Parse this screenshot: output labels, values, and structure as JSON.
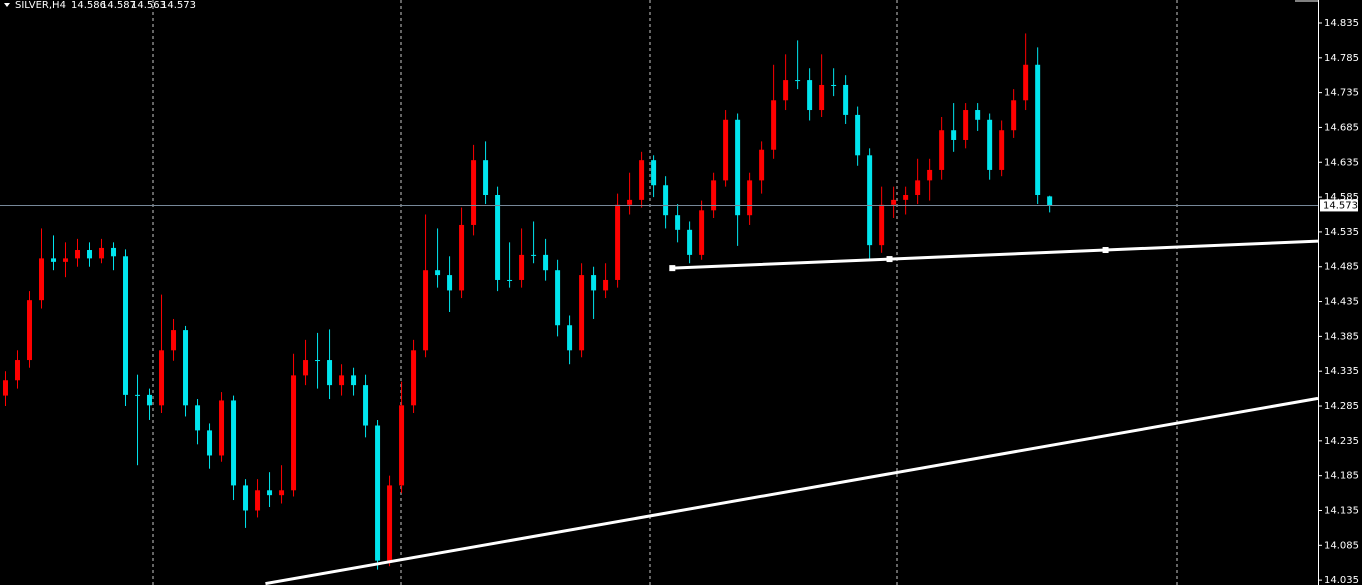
{
  "chart_data": {
    "type": "candlestick",
    "title": "SILVER,H4",
    "up_color": "#ff0000",
    "down_color": "#00e5ee",
    "ylim": [
      14.028,
      14.868
    ],
    "xlim": [
      0,
      109.4
    ],
    "yticks": [
      14.835,
      14.785,
      14.735,
      14.685,
      14.635,
      14.585,
      14.535,
      14.485,
      14.435,
      14.385,
      14.335,
      14.285,
      14.235,
      14.185,
      14.135,
      14.085,
      14.035
    ],
    "open": [
      14.3,
      14.322,
      14.351,
      14.437,
      14.497,
      14.492,
      14.497,
      14.509,
      14.497,
      14.512,
      14.5,
      14.301,
      14.301,
      14.286,
      14.365,
      14.394,
      14.286,
      14.25,
      14.214,
      14.293,
      14.171,
      14.135,
      14.164,
      14.157,
      14.164,
      14.329,
      14.351,
      14.351,
      14.315,
      14.329,
      14.315,
      14.257,
      14.063,
      14.171,
      14.286,
      14.365,
      14.48,
      14.473,
      14.451,
      14.545,
      14.638,
      14.588,
      14.466,
      14.466,
      14.502,
      14.502,
      14.48,
      14.401,
      14.365,
      14.473,
      14.451,
      14.466,
      14.574,
      14.581,
      14.638,
      14.602,
      14.559,
      14.538,
      14.502,
      14.566,
      14.609,
      14.696,
      14.559,
      14.609,
      14.653,
      14.724,
      14.753,
      14.753,
      14.71,
      14.746,
      14.746,
      14.703,
      14.645,
      14.516,
      14.574,
      14.581,
      14.588,
      14.609,
      14.624,
      14.681,
      14.667,
      14.71,
      14.696,
      14.624,
      14.681,
      14.724,
      14.775,
      14.586
    ],
    "high": [
      14.335,
      14.365,
      14.45,
      14.54,
      14.53,
      14.52,
      14.525,
      14.52,
      14.525,
      14.52,
      14.51,
      14.33,
      14.31,
      14.445,
      14.41,
      14.4,
      14.295,
      14.26,
      14.305,
      14.3,
      14.18,
      14.18,
      14.19,
      14.2,
      14.36,
      14.38,
      14.39,
      14.395,
      14.345,
      14.34,
      14.33,
      14.265,
      14.185,
      14.32,
      14.38,
      14.56,
      14.54,
      14.5,
      14.57,
      14.66,
      14.665,
      14.6,
      14.52,
      14.54,
      14.55,
      14.525,
      14.495,
      14.415,
      14.49,
      14.485,
      14.49,
      14.59,
      14.62,
      14.65,
      14.645,
      14.615,
      14.575,
      14.55,
      14.58,
      14.62,
      14.71,
      14.705,
      14.62,
      14.665,
      14.775,
      14.79,
      14.81,
      14.77,
      14.79,
      14.77,
      14.76,
      14.715,
      14.655,
      14.6,
      14.6,
      14.6,
      14.64,
      14.64,
      14.7,
      14.72,
      14.72,
      14.72,
      14.705,
      14.695,
      14.74,
      14.82,
      14.8,
      14.587
    ],
    "low": [
      14.285,
      14.31,
      14.34,
      14.425,
      14.48,
      14.47,
      14.485,
      14.485,
      14.49,
      14.48,
      14.285,
      14.2,
      14.265,
      14.275,
      14.35,
      14.27,
      14.23,
      14.195,
      14.205,
      14.15,
      14.11,
      14.125,
      14.14,
      14.145,
      14.155,
      14.315,
      14.31,
      14.295,
      14.3,
      14.3,
      14.24,
      14.05,
      14.055,
      14.16,
      14.275,
      14.355,
      14.455,
      14.42,
      14.44,
      14.53,
      14.575,
      14.45,
      14.455,
      14.455,
      14.49,
      14.465,
      14.385,
      14.345,
      14.355,
      14.41,
      14.44,
      14.455,
      14.56,
      14.57,
      14.585,
      14.54,
      14.52,
      14.49,
      14.495,
      14.555,
      14.6,
      14.515,
      14.545,
      14.59,
      14.64,
      14.71,
      14.74,
      14.695,
      14.7,
      14.73,
      14.69,
      14.63,
      14.495,
      14.505,
      14.555,
      14.56,
      14.575,
      14.58,
      14.61,
      14.65,
      14.655,
      14.68,
      14.61,
      14.615,
      14.67,
      14.71,
      14.575,
      14.563
    ],
    "close": [
      14.322,
      14.351,
      14.437,
      14.497,
      14.492,
      14.497,
      14.509,
      14.497,
      14.512,
      14.5,
      14.301,
      14.301,
      14.286,
      14.365,
      14.394,
      14.286,
      14.25,
      14.214,
      14.293,
      14.171,
      14.135,
      14.164,
      14.157,
      14.164,
      14.329,
      14.351,
      14.351,
      14.315,
      14.329,
      14.315,
      14.257,
      14.063,
      14.171,
      14.286,
      14.365,
      14.48,
      14.473,
      14.451,
      14.545,
      14.638,
      14.588,
      14.466,
      14.466,
      14.502,
      14.502,
      14.48,
      14.401,
      14.365,
      14.473,
      14.451,
      14.466,
      14.574,
      14.581,
      14.638,
      14.602,
      14.559,
      14.538,
      14.502,
      14.566,
      14.609,
      14.696,
      14.559,
      14.609,
      14.653,
      14.724,
      14.753,
      14.753,
      14.71,
      14.746,
      14.746,
      14.703,
      14.645,
      14.516,
      14.574,
      14.581,
      14.588,
      14.609,
      14.624,
      14.681,
      14.667,
      14.71,
      14.696,
      14.624,
      14.681,
      14.724,
      14.775,
      14.588,
      14.573
    ],
    "trendlines": [
      {
        "x": [
          55.6,
          73.7,
          91.7
        ],
        "y": [
          14.483,
          14.496,
          14.509
        ],
        "color": "#ffffff",
        "ray": true
      },
      {
        "x": [
          21.7,
          109.4
        ],
        "y": [
          14.03,
          14.296
        ],
        "color": "#ffffff",
        "ray": false
      }
    ]
  }
}
